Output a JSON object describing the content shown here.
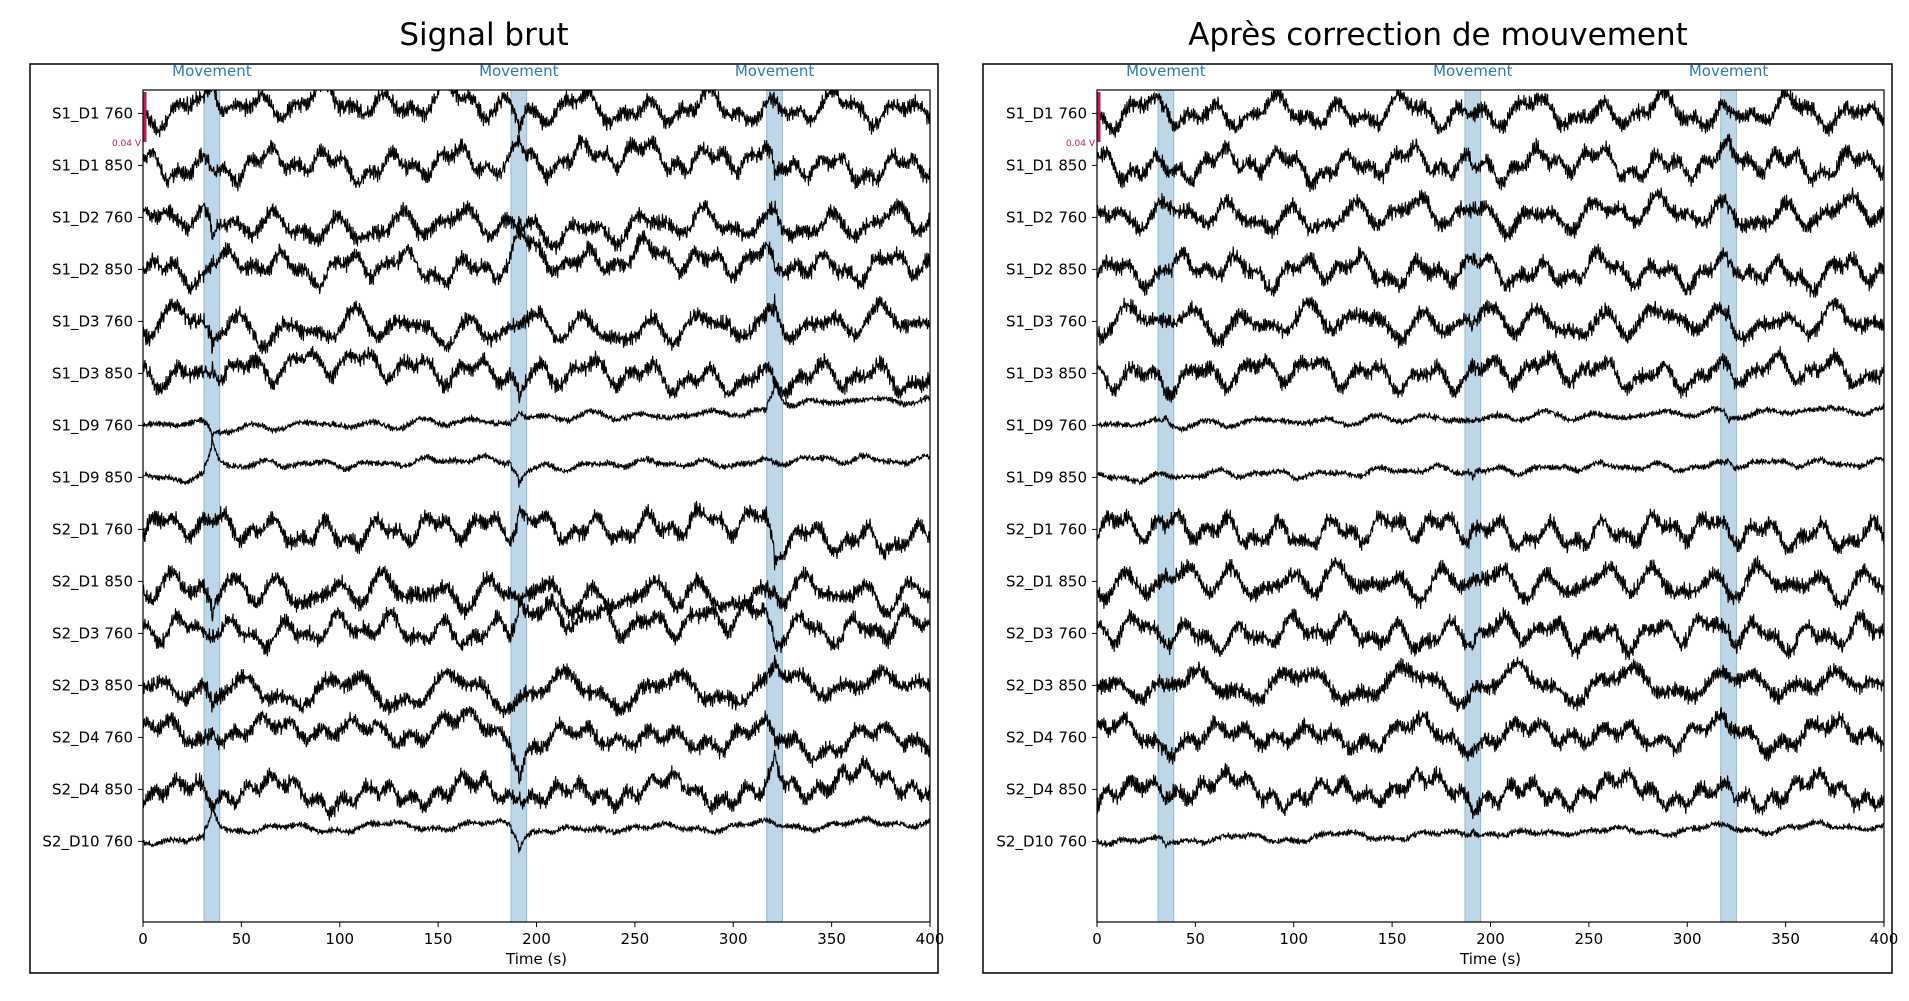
{
  "chart_data": [
    {
      "type": "line",
      "title": "Signal brut",
      "xlabel": "Time (s)",
      "xlim": [
        0,
        400
      ],
      "xticks": [
        0,
        50,
        100,
        150,
        200,
        250,
        300,
        350,
        400
      ],
      "channels": [
        "S1_D1 760",
        "S1_D1 850",
        "S1_D2 760",
        "S1_D2 850",
        "S1_D3 760",
        "S1_D3 850",
        "S1_D9 760",
        "S1_D9 850",
        "S2_D1 760",
        "S2_D1 850",
        "S2_D3 760",
        "S2_D3 850",
        "S2_D4 760",
        "S2_D4 850",
        "S2_D10 760"
      ],
      "annotations": [
        {
          "label": "Movement",
          "start": 31,
          "end": 39
        },
        {
          "label": "Movement",
          "start": 187,
          "end": 195
        },
        {
          "label": "Movement",
          "start": 317,
          "end": 325
        }
      ],
      "scale_bar": {
        "label": "0.04 V",
        "value": 0.04,
        "color": "#c2185b"
      },
      "shade_color": "#7bafd4",
      "label_color": "#2c7bb6"
    },
    {
      "type": "line",
      "title": "Après correction de mouvement",
      "xlabel": "Time (s)",
      "xlim": [
        0,
        400
      ],
      "xticks": [
        0,
        50,
        100,
        150,
        200,
        250,
        300,
        350,
        400
      ],
      "channels": [
        "S1_D1 760",
        "S1_D1 850",
        "S1_D2 760",
        "S1_D2 850",
        "S1_D3 760",
        "S1_D3 850",
        "S1_D9 760",
        "S1_D9 850",
        "S2_D1 760",
        "S2_D1 850",
        "S2_D3 760",
        "S2_D3 850",
        "S2_D4 760",
        "S2_D4 850",
        "S2_D10 760"
      ],
      "annotations": [
        {
          "label": "Movement",
          "start": 31,
          "end": 39
        },
        {
          "label": "Movement",
          "start": 187,
          "end": 195
        },
        {
          "label": "Movement",
          "start": 317,
          "end": 325
        }
      ],
      "scale_bar": {
        "label": "0.04 V",
        "value": 0.04,
        "color": "#c2185b"
      },
      "shade_color": "#7bafd4",
      "label_color": "#2c7bb6"
    }
  ]
}
